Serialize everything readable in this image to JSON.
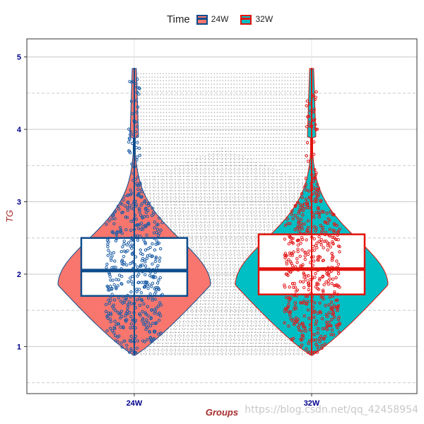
{
  "chart_data": {
    "type": "violin",
    "title": "",
    "xlabel": "Groups",
    "ylabel": "TG",
    "ylim": [
      0.35,
      5.25
    ],
    "yticks": [
      1,
      2,
      3,
      4,
      5
    ],
    "categories": [
      "24W",
      "32W"
    ],
    "legend": {
      "title": "Time",
      "position": "top",
      "items": [
        "24W",
        "32W"
      ]
    },
    "grid": true,
    "colors": {
      "violin_24W": "#f8766d",
      "violin_32W": "#00bfc4",
      "box_24W": "#0d4c8c",
      "box_32W": "#e3120b",
      "points_24W": "#1f5fa8",
      "points_32W": "#e31a1c",
      "tick_labels": "#00008b",
      "axis_title": "#a52a2a",
      "grid_major": "#c9c9c9",
      "pairline": "#9a9a9a"
    },
    "series": [
      {
        "name": "24W",
        "box": {
          "q1": 1.7,
          "median": 2.05,
          "q3": 2.5,
          "whisker_low": 0.88,
          "whisker_high": 4.85
        },
        "violin_range": [
          0.88,
          4.85
        ]
      },
      {
        "name": "32W",
        "box": {
          "q1": 1.72,
          "median": 2.07,
          "q3": 2.55,
          "whisker_low": 0.88,
          "whisker_high": 4.85
        },
        "violin_range": [
          0.88,
          4.85
        ]
      }
    ]
  },
  "watermark": "https://blog.csdn.net/qq_42458954"
}
